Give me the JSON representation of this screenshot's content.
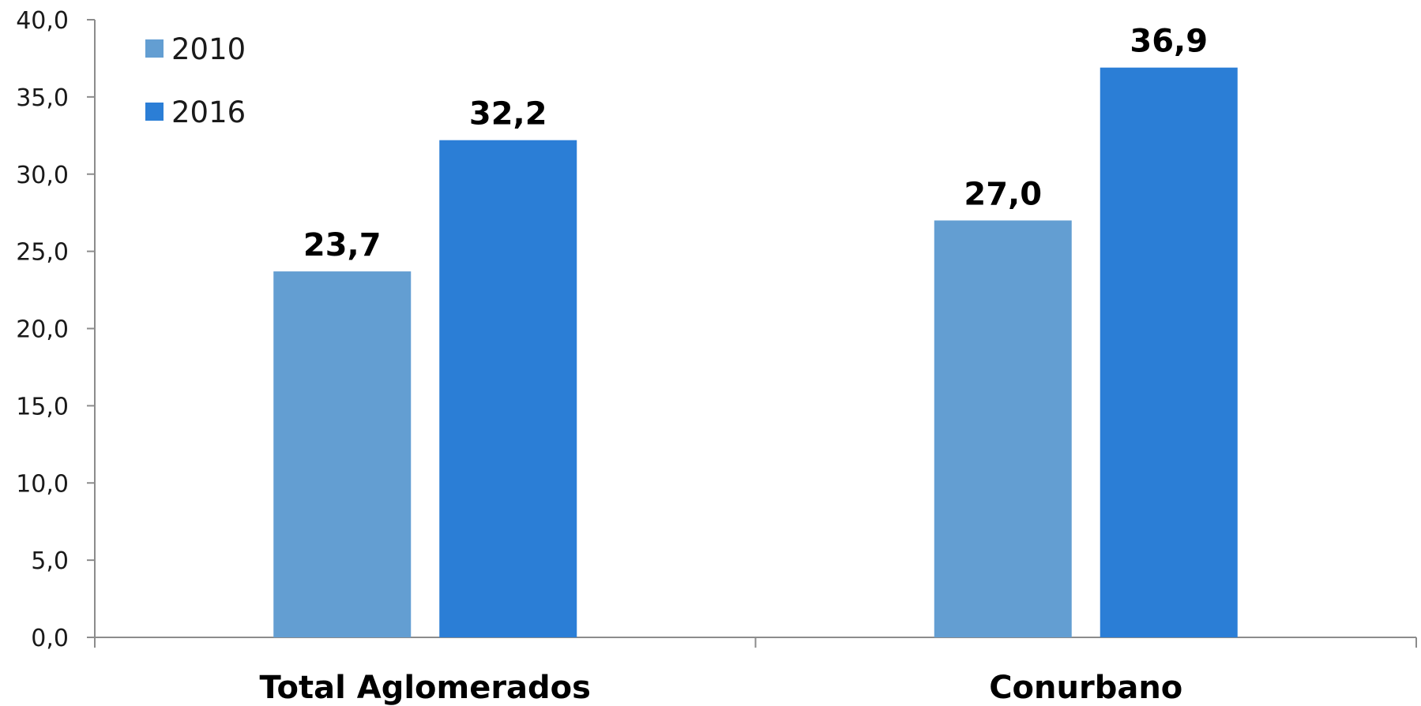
{
  "chart_data": {
    "type": "bar",
    "categories": [
      "Total Aglomerados",
      "Conurbano"
    ],
    "series": [
      {
        "name": "2010",
        "values": [
          23.7,
          27.0
        ],
        "labels": [
          "23,7",
          "27,0"
        ],
        "color": "#639ED2"
      },
      {
        "name": "2016",
        "values": [
          32.2,
          36.9
        ],
        "labels": [
          "32,2",
          "36,9"
        ],
        "color": "#2B7ED6"
      }
    ],
    "y_ticks": [
      0,
      5,
      10,
      15,
      20,
      25,
      30,
      35,
      40
    ],
    "y_tick_labels": [
      "0,0",
      "5,0",
      "10,0",
      "15,0",
      "20,0",
      "25,0",
      "30,0",
      "35,0",
      "40,0"
    ],
    "ylim": [
      0,
      40
    ],
    "grid": false,
    "legend_position": "top-left"
  }
}
